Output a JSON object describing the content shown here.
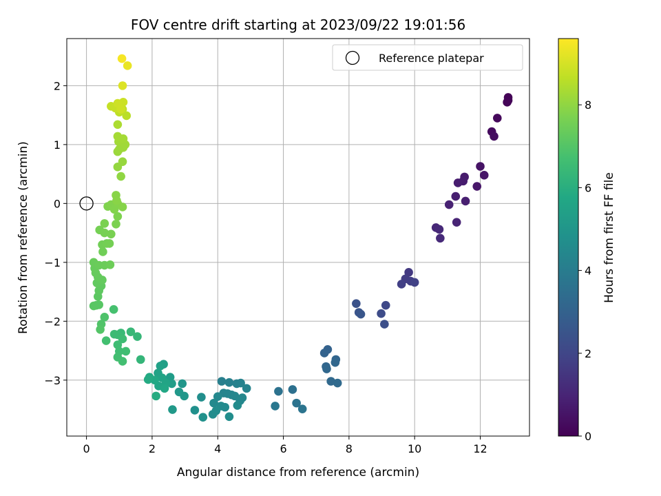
{
  "chart_data": {
    "type": "scatter",
    "title": "FOV centre drift starting at 2023/09/22 19:01:56",
    "xlabel": "Angular distance from reference (arcmin)",
    "ylabel": "Rotation from reference (arcmin)",
    "xlim": [
      -0.6,
      13.5
    ],
    "ylim": [
      -3.95,
      2.8
    ],
    "xticks": [
      0,
      2,
      4,
      6,
      8,
      10,
      12
    ],
    "yticks": [
      -3,
      -2,
      -1,
      0,
      1,
      2
    ],
    "grid": true,
    "legend": {
      "position": "upper-right",
      "label": "Reference platepar"
    },
    "reference_point": {
      "x": 0,
      "y": 0
    },
    "colorbar": {
      "label": "Hours from first FF file",
      "range": [
        0,
        9.6
      ],
      "ticks": [
        0,
        2,
        4,
        6,
        8
      ],
      "colormap": "viridis"
    },
    "points": [
      {
        "x": 12.85,
        "y": 1.8,
        "h": 0.05
      },
      {
        "x": 12.85,
        "y": 1.75,
        "h": 0.08
      },
      {
        "x": 12.82,
        "y": 1.72,
        "h": 0.12
      },
      {
        "x": 12.52,
        "y": 1.45,
        "h": 0.2
      },
      {
        "x": 12.35,
        "y": 1.22,
        "h": 0.28
      },
      {
        "x": 12.42,
        "y": 1.14,
        "h": 0.35
      },
      {
        "x": 12.0,
        "y": 0.63,
        "h": 0.5
      },
      {
        "x": 12.12,
        "y": 0.48,
        "h": 0.55
      },
      {
        "x": 11.9,
        "y": 0.29,
        "h": 0.6
      },
      {
        "x": 11.52,
        "y": 0.45,
        "h": 0.7
      },
      {
        "x": 11.48,
        "y": 0.38,
        "h": 0.75
      },
      {
        "x": 11.32,
        "y": 0.35,
        "h": 0.78
      },
      {
        "x": 11.25,
        "y": 0.12,
        "h": 0.82
      },
      {
        "x": 11.55,
        "y": 0.04,
        "h": 0.85
      },
      {
        "x": 11.05,
        "y": -0.02,
        "h": 0.9
      },
      {
        "x": 11.28,
        "y": -0.32,
        "h": 0.95
      },
      {
        "x": 10.65,
        "y": -0.41,
        "h": 1.05
      },
      {
        "x": 10.75,
        "y": -0.44,
        "h": 1.1
      },
      {
        "x": 10.78,
        "y": -0.59,
        "h": 1.15
      },
      {
        "x": 9.82,
        "y": -1.17,
        "h": 1.6
      },
      {
        "x": 9.72,
        "y": -1.28,
        "h": 1.7
      },
      {
        "x": 9.88,
        "y": -1.32,
        "h": 1.75
      },
      {
        "x": 9.6,
        "y": -1.37,
        "h": 1.8
      },
      {
        "x": 10.0,
        "y": -1.34,
        "h": 1.85
      },
      {
        "x": 8.22,
        "y": -1.7,
        "h": 2.4
      },
      {
        "x": 8.3,
        "y": -1.85,
        "h": 2.5
      },
      {
        "x": 8.36,
        "y": -1.88,
        "h": 2.55
      },
      {
        "x": 9.12,
        "y": -1.73,
        "h": 2.1
      },
      {
        "x": 8.98,
        "y": -1.87,
        "h": 2.2
      },
      {
        "x": 9.08,
        "y": -2.05,
        "h": 2.3
      },
      {
        "x": 7.35,
        "y": -2.48,
        "h": 3.0
      },
      {
        "x": 7.25,
        "y": -2.54,
        "h": 3.05
      },
      {
        "x": 7.6,
        "y": -2.65,
        "h": 3.1
      },
      {
        "x": 7.3,
        "y": -2.77,
        "h": 3.15
      },
      {
        "x": 7.58,
        "y": -2.7,
        "h": 3.18
      },
      {
        "x": 7.32,
        "y": -2.81,
        "h": 3.2
      },
      {
        "x": 7.45,
        "y": -3.02,
        "h": 3.25
      },
      {
        "x": 7.65,
        "y": -3.05,
        "h": 3.3
      },
      {
        "x": 5.85,
        "y": -3.19,
        "h": 3.6
      },
      {
        "x": 6.28,
        "y": -3.16,
        "h": 3.55
      },
      {
        "x": 6.4,
        "y": -3.39,
        "h": 3.65
      },
      {
        "x": 6.58,
        "y": -3.49,
        "h": 3.7
      },
      {
        "x": 5.75,
        "y": -3.44,
        "h": 3.8
      },
      {
        "x": 4.12,
        "y": -3.02,
        "h": 4.1
      },
      {
        "x": 4.35,
        "y": -3.04,
        "h": 4.15
      },
      {
        "x": 4.58,
        "y": -3.06,
        "h": 4.2
      },
      {
        "x": 4.7,
        "y": -3.05,
        "h": 4.22
      },
      {
        "x": 4.88,
        "y": -3.14,
        "h": 4.25
      },
      {
        "x": 4.18,
        "y": -3.22,
        "h": 4.3
      },
      {
        "x": 4.3,
        "y": -3.23,
        "h": 4.32
      },
      {
        "x": 4.42,
        "y": -3.25,
        "h": 4.35
      },
      {
        "x": 4.52,
        "y": -3.27,
        "h": 4.38
      },
      {
        "x": 4.75,
        "y": -3.3,
        "h": 4.4
      },
      {
        "x": 4.68,
        "y": -3.35,
        "h": 4.42
      },
      {
        "x": 4.0,
        "y": -3.28,
        "h": 4.45
      },
      {
        "x": 3.88,
        "y": -3.39,
        "h": 4.5
      },
      {
        "x": 4.1,
        "y": -3.44,
        "h": 4.52
      },
      {
        "x": 4.22,
        "y": -3.46,
        "h": 4.55
      },
      {
        "x": 4.6,
        "y": -3.43,
        "h": 4.58
      },
      {
        "x": 3.95,
        "y": -3.52,
        "h": 4.6
      },
      {
        "x": 3.85,
        "y": -3.58,
        "h": 4.62
      },
      {
        "x": 4.35,
        "y": -3.62,
        "h": 4.65
      },
      {
        "x": 3.5,
        "y": -3.29,
        "h": 4.7
      },
      {
        "x": 3.3,
        "y": -3.51,
        "h": 4.75
      },
      {
        "x": 3.55,
        "y": -3.63,
        "h": 4.8
      },
      {
        "x": 2.92,
        "y": -3.06,
        "h": 5.0
      },
      {
        "x": 2.98,
        "y": -3.27,
        "h": 5.05
      },
      {
        "x": 2.82,
        "y": -3.2,
        "h": 5.1
      },
      {
        "x": 2.62,
        "y": -3.5,
        "h": 5.15
      },
      {
        "x": 2.55,
        "y": -2.95,
        "h": 5.25
      },
      {
        "x": 2.6,
        "y": -3.06,
        "h": 5.3
      },
      {
        "x": 2.35,
        "y": -2.73,
        "h": 5.4
      },
      {
        "x": 2.25,
        "y": -2.76,
        "h": 5.45
      },
      {
        "x": 2.18,
        "y": -2.88,
        "h": 5.5
      },
      {
        "x": 2.3,
        "y": -2.96,
        "h": 5.55
      },
      {
        "x": 2.42,
        "y": -3.05,
        "h": 5.6
      },
      {
        "x": 2.2,
        "y": -3.1,
        "h": 5.65
      },
      {
        "x": 2.38,
        "y": -3.14,
        "h": 5.7
      },
      {
        "x": 2.08,
        "y": -3.0,
        "h": 5.75
      },
      {
        "x": 1.92,
        "y": -2.95,
        "h": 5.8
      },
      {
        "x": 1.88,
        "y": -2.99,
        "h": 5.85
      },
      {
        "x": 2.12,
        "y": -3.27,
        "h": 5.9
      },
      {
        "x": 1.65,
        "y": -2.65,
        "h": 6.3
      },
      {
        "x": 1.55,
        "y": -2.26,
        "h": 6.35
      },
      {
        "x": 1.35,
        "y": -2.18,
        "h": 6.4
      },
      {
        "x": 1.05,
        "y": -2.2,
        "h": 6.45
      },
      {
        "x": 0.95,
        "y": -2.23,
        "h": 6.5
      },
      {
        "x": 0.85,
        "y": -2.22,
        "h": 6.52
      },
      {
        "x": 1.1,
        "y": -2.3,
        "h": 6.55
      },
      {
        "x": 0.95,
        "y": -2.4,
        "h": 6.58
      },
      {
        "x": 1.0,
        "y": -2.51,
        "h": 6.6
      },
      {
        "x": 1.2,
        "y": -2.51,
        "h": 6.62
      },
      {
        "x": 0.95,
        "y": -2.61,
        "h": 6.65
      },
      {
        "x": 1.1,
        "y": -2.68,
        "h": 6.68
      },
      {
        "x": 0.6,
        "y": -2.33,
        "h": 6.7
      },
      {
        "x": 0.83,
        "y": -1.8,
        "h": 6.75
      },
      {
        "x": 0.55,
        "y": -1.93,
        "h": 6.9
      },
      {
        "x": 0.45,
        "y": -2.05,
        "h": 6.95
      },
      {
        "x": 0.42,
        "y": -2.14,
        "h": 7.0
      },
      {
        "x": 0.3,
        "y": -1.73,
        "h": 7.05
      },
      {
        "x": 0.38,
        "y": -1.72,
        "h": 7.08
      },
      {
        "x": 0.22,
        "y": -1.74,
        "h": 7.1
      },
      {
        "x": 0.35,
        "y": -1.58,
        "h": 7.15
      },
      {
        "x": 0.38,
        "y": -1.48,
        "h": 7.2
      },
      {
        "x": 0.45,
        "y": -1.4,
        "h": 7.22
      },
      {
        "x": 0.32,
        "y": -1.35,
        "h": 7.25
      },
      {
        "x": 0.48,
        "y": -1.3,
        "h": 7.28
      },
      {
        "x": 0.35,
        "y": -1.25,
        "h": 7.3
      },
      {
        "x": 0.28,
        "y": -1.18,
        "h": 7.32
      },
      {
        "x": 0.25,
        "y": -1.1,
        "h": 7.35
      },
      {
        "x": 0.22,
        "y": -1.0,
        "h": 7.38
      },
      {
        "x": 0.38,
        "y": -1.05,
        "h": 7.4
      },
      {
        "x": 0.55,
        "y": -1.05,
        "h": 7.42
      },
      {
        "x": 0.72,
        "y": -1.04,
        "h": 7.45
      },
      {
        "x": 0.5,
        "y": -0.82,
        "h": 7.5
      },
      {
        "x": 0.48,
        "y": -0.7,
        "h": 7.52
      },
      {
        "x": 0.62,
        "y": -0.68,
        "h": 7.55
      },
      {
        "x": 0.7,
        "y": -0.68,
        "h": 7.58
      },
      {
        "x": 0.4,
        "y": -0.45,
        "h": 7.6
      },
      {
        "x": 0.55,
        "y": -0.5,
        "h": 7.62
      },
      {
        "x": 0.75,
        "y": -0.52,
        "h": 7.65
      },
      {
        "x": 0.55,
        "y": -0.34,
        "h": 7.68
      },
      {
        "x": 0.9,
        "y": -0.35,
        "h": 7.7
      },
      {
        "x": 0.95,
        "y": -0.22,
        "h": 7.72
      },
      {
        "x": 0.65,
        "y": -0.05,
        "h": 7.75
      },
      {
        "x": 0.75,
        "y": -0.02,
        "h": 7.78
      },
      {
        "x": 0.85,
        "y": -0.1,
        "h": 7.8
      },
      {
        "x": 0.95,
        "y": 0.0,
        "h": 7.82
      },
      {
        "x": 1.1,
        "y": -0.06,
        "h": 7.85
      },
      {
        "x": 0.9,
        "y": 0.14,
        "h": 7.88
      },
      {
        "x": 0.92,
        "y": 0.05,
        "h": 7.9
      },
      {
        "x": 1.05,
        "y": 0.46,
        "h": 8.0
      },
      {
        "x": 0.95,
        "y": 0.62,
        "h": 8.05
      },
      {
        "x": 1.1,
        "y": 0.71,
        "h": 8.1
      },
      {
        "x": 0.95,
        "y": 0.88,
        "h": 8.15
      },
      {
        "x": 1.0,
        "y": 0.92,
        "h": 8.18
      },
      {
        "x": 1.12,
        "y": 0.95,
        "h": 8.2
      },
      {
        "x": 1.18,
        "y": 1.0,
        "h": 8.22
      },
      {
        "x": 0.98,
        "y": 1.05,
        "h": 8.25
      },
      {
        "x": 1.12,
        "y": 1.1,
        "h": 8.28
      },
      {
        "x": 0.95,
        "y": 1.14,
        "h": 8.3
      },
      {
        "x": 0.95,
        "y": 1.34,
        "h": 8.4
      },
      {
        "x": 1.22,
        "y": 1.49,
        "h": 8.6
      },
      {
        "x": 1.0,
        "y": 1.55,
        "h": 8.65
      },
      {
        "x": 1.1,
        "y": 1.6,
        "h": 8.7
      },
      {
        "x": 0.75,
        "y": 1.65,
        "h": 8.75
      },
      {
        "x": 0.88,
        "y": 1.62,
        "h": 8.78
      },
      {
        "x": 1.0,
        "y": 1.68,
        "h": 8.8
      },
      {
        "x": 1.12,
        "y": 1.72,
        "h": 8.85
      },
      {
        "x": 0.95,
        "y": 1.7,
        "h": 8.88
      },
      {
        "x": 1.05,
        "y": 1.6,
        "h": 8.9
      },
      {
        "x": 1.1,
        "y": 2.0,
        "h": 9.1
      },
      {
        "x": 1.25,
        "y": 2.34,
        "h": 9.3
      },
      {
        "x": 1.08,
        "y": 2.46,
        "h": 9.5
      }
    ]
  }
}
